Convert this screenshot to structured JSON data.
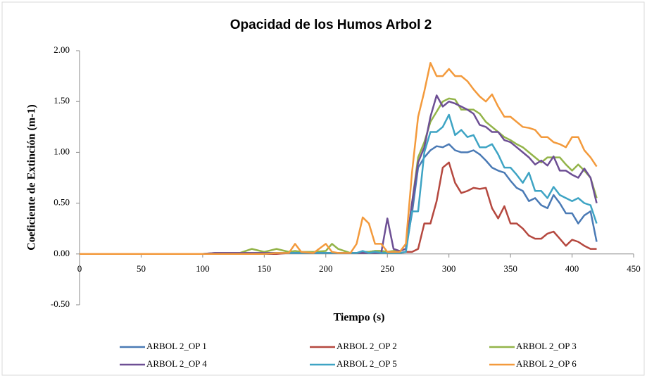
{
  "chart_data": {
    "type": "line",
    "title": "Opacidad de los Humos Arbol 2",
    "x_label": "Tiempo (s)",
    "y_label": "Coeficiente de Extinción (m-1)",
    "x": [
      0,
      100,
      110,
      120,
      130,
      140,
      150,
      160,
      170,
      175,
      180,
      190,
      200,
      205,
      210,
      220,
      225,
      230,
      235,
      240,
      245,
      250,
      255,
      260,
      265,
      270,
      275,
      280,
      285,
      290,
      295,
      300,
      305,
      310,
      315,
      320,
      325,
      330,
      335,
      340,
      345,
      350,
      355,
      360,
      365,
      370,
      375,
      380,
      385,
      390,
      395,
      400,
      405,
      410,
      415,
      420
    ],
    "xlim": [
      0,
      450
    ],
    "xticks": [
      0,
      50,
      100,
      150,
      200,
      250,
      300,
      350,
      400,
      450
    ],
    "ylim": [
      -0.5,
      2
    ],
    "yticks": [
      {
        "value": -0.5,
        "label": "-0.50"
      },
      {
        "value": 0,
        "label": "0.00"
      },
      {
        "value": 0.5,
        "label": "0.50"
      },
      {
        "value": 1,
        "label": "1.00"
      },
      {
        "value": 1.5,
        "label": "1.50"
      },
      {
        "value": 2,
        "label": "2.00"
      }
    ],
    "series": [
      {
        "name": "ARBOL 2_OP 1",
        "color": "#4a7ab5",
        "values": [
          0,
          0,
          0.01,
          0.01,
          0.01,
          0.01,
          0.01,
          0.01,
          0.01,
          0.01,
          0.01,
          0.01,
          0.01,
          0.01,
          0.01,
          0.01,
          0.01,
          0.02,
          0.02,
          0.03,
          0.03,
          0.02,
          0.03,
          0.03,
          0.05,
          0.4,
          0.85,
          0.95,
          1.02,
          1.06,
          1.05,
          1.08,
          1.02,
          1.0,
          1.0,
          1.02,
          0.98,
          0.92,
          0.85,
          0.82,
          0.8,
          0.72,
          0.65,
          0.62,
          0.52,
          0.55,
          0.48,
          0.45,
          0.58,
          0.5,
          0.4,
          0.4,
          0.3,
          0.38,
          0.42,
          0.12
        ]
      },
      {
        "name": "ARBOL 2_OP 2",
        "color": "#b5483f",
        "values": [
          0,
          0,
          0,
          0,
          0,
          0,
          0,
          0,
          0.01,
          0.01,
          0.01,
          0.01,
          0.01,
          0.01,
          0.01,
          0.01,
          0.01,
          0.01,
          0.01,
          0.01,
          0.01,
          0.01,
          0.01,
          0.01,
          0.02,
          0.02,
          0.05,
          0.3,
          0.3,
          0.52,
          0.85,
          0.9,
          0.7,
          0.6,
          0.62,
          0.65,
          0.64,
          0.65,
          0.45,
          0.35,
          0.47,
          0.3,
          0.3,
          0.25,
          0.18,
          0.15,
          0.15,
          0.2,
          0.22,
          0.15,
          0.08,
          0.14,
          0.12,
          0.08,
          0.05,
          0.05
        ]
      },
      {
        "name": "ARBOL 2_OP 3",
        "color": "#93b449",
        "values": [
          0,
          0,
          0,
          0,
          0.01,
          0.05,
          0.02,
          0.05,
          0.02,
          0.03,
          0.02,
          0.02,
          0.03,
          0.1,
          0.05,
          0.01,
          0.01,
          0.02,
          0.02,
          0.03,
          0.03,
          0.02,
          0.03,
          0.03,
          0.05,
          0.5,
          0.95,
          1.1,
          1.3,
          1.4,
          1.5,
          1.53,
          1.52,
          1.42,
          1.42,
          1.42,
          1.38,
          1.3,
          1.25,
          1.2,
          1.15,
          1.12,
          1.08,
          1.05,
          1.0,
          0.95,
          0.9,
          0.95,
          0.95,
          0.95,
          0.88,
          0.82,
          0.88,
          0.82,
          0.75,
          0.55
        ]
      },
      {
        "name": "ARBOL 2_OP 4",
        "color": "#6d4f94",
        "values": [
          0,
          0,
          0.01,
          0.01,
          0.01,
          0.01,
          0.01,
          0.01,
          0.01,
          0.01,
          0.01,
          0.01,
          0.01,
          0.01,
          0.01,
          0.01,
          0.01,
          0.01,
          0.01,
          0.01,
          0.01,
          0.35,
          0.05,
          0.03,
          0.05,
          0.5,
          0.9,
          1.05,
          1.35,
          1.56,
          1.45,
          1.5,
          1.48,
          1.45,
          1.42,
          1.38,
          1.27,
          1.25,
          1.2,
          1.2,
          1.12,
          1.1,
          1.05,
          1.0,
          0.95,
          0.88,
          0.92,
          0.87,
          0.96,
          0.82,
          0.82,
          0.78,
          0.75,
          0.84,
          0.75,
          0.5
        ]
      },
      {
        "name": "ARBOL 2_OP 5",
        "color": "#3ea4c4",
        "values": [
          0,
          0,
          0,
          0,
          0,
          0,
          0,
          0.01,
          0.01,
          0.01,
          0.01,
          0.01,
          0.01,
          0.01,
          0.01,
          0.01,
          0.01,
          0.03,
          0.01,
          0.02,
          0.01,
          0.01,
          0.01,
          0.01,
          0.02,
          0.42,
          0.42,
          1.0,
          1.2,
          1.2,
          1.25,
          1.37,
          1.17,
          1.22,
          1.15,
          1.17,
          1.05,
          1.05,
          1.08,
          0.98,
          0.85,
          0.85,
          0.78,
          0.7,
          0.8,
          0.62,
          0.62,
          0.55,
          0.66,
          0.58,
          0.55,
          0.52,
          0.55,
          0.5,
          0.48,
          0.3
        ]
      },
      {
        "name": "ARBOL 2_OP 6",
        "color": "#f39a3c",
        "values": [
          0,
          0,
          0,
          0,
          0,
          0,
          0,
          0.01,
          0.01,
          0.1,
          0.02,
          0.01,
          0.1,
          0.02,
          0.01,
          0.01,
          0.1,
          0.36,
          0.3,
          0.1,
          0.1,
          0.02,
          0.02,
          0.02,
          0.1,
          0.8,
          1.35,
          1.6,
          1.88,
          1.75,
          1.75,
          1.82,
          1.75,
          1.75,
          1.7,
          1.62,
          1.55,
          1.5,
          1.57,
          1.45,
          1.35,
          1.35,
          1.3,
          1.25,
          1.24,
          1.22,
          1.15,
          1.15,
          1.1,
          1.08,
          1.05,
          1.15,
          1.15,
          1.02,
          0.95,
          0.86
        ]
      }
    ],
    "legend": "bottom"
  }
}
